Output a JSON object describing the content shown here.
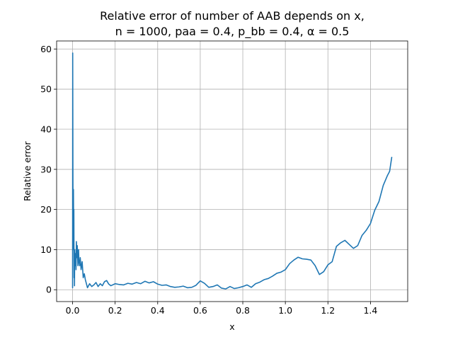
{
  "chart_data": {
    "type": "line",
    "title": "Relative error of number of AAB depends on x,",
    "subtitle": "n = 1000, paa = 0.4, p_bb = 0.4, α = 0.5",
    "xlabel": "x",
    "ylabel": "Relative error",
    "xlim": [
      -0.075,
      1.575
    ],
    "ylim": [
      -2.95,
      62.0
    ],
    "xticks": [
      0.0,
      0.2,
      0.4,
      0.6,
      0.8,
      1.0,
      1.2,
      1.4
    ],
    "xtick_labels": [
      "0.0",
      "0.2",
      "0.4",
      "0.6",
      "0.8",
      "1.0",
      "1.2",
      "1.4"
    ],
    "yticks": [
      0,
      10,
      20,
      30,
      40,
      50,
      60
    ],
    "ytick_labels": [
      "0",
      "10",
      "20",
      "30",
      "40",
      "50",
      "60"
    ],
    "grid": true,
    "series": [
      {
        "color": "#1f77b4",
        "x": [
          0.0,
          0.0005,
          0.001,
          0.0015,
          0.002,
          0.003,
          0.004,
          0.005,
          0.006,
          0.007,
          0.008,
          0.009,
          0.01,
          0.012,
          0.014,
          0.016,
          0.018,
          0.02,
          0.022,
          0.025,
          0.028,
          0.03,
          0.033,
          0.036,
          0.04,
          0.045,
          0.05,
          0.055,
          0.06,
          0.065,
          0.07,
          0.08,
          0.09,
          0.1,
          0.11,
          0.12,
          0.13,
          0.14,
          0.15,
          0.16,
          0.17,
          0.18,
          0.2,
          0.22,
          0.24,
          0.26,
          0.28,
          0.3,
          0.32,
          0.34,
          0.36,
          0.38,
          0.4,
          0.42,
          0.44,
          0.46,
          0.48,
          0.5,
          0.52,
          0.54,
          0.56,
          0.58,
          0.6,
          0.62,
          0.64,
          0.66,
          0.68,
          0.7,
          0.72,
          0.74,
          0.76,
          0.78,
          0.8,
          0.82,
          0.84,
          0.86,
          0.88,
          0.9,
          0.92,
          0.94,
          0.96,
          0.98,
          1.0,
          1.02,
          1.04,
          1.06,
          1.08,
          1.1,
          1.12,
          1.14,
          1.16,
          1.18,
          1.2,
          1.22,
          1.24,
          1.26,
          1.28,
          1.3,
          1.32,
          1.34,
          1.36,
          1.38,
          1.4,
          1.42,
          1.44,
          1.46,
          1.48,
          1.49,
          1.5
        ],
        "y": [
          0.5,
          59.0,
          45.0,
          30.0,
          20.0,
          10.0,
          25.0,
          14.0,
          20.0,
          3.0,
          8.0,
          1.0,
          10.0,
          6.0,
          9.0,
          5.0,
          12.0,
          8.0,
          11.0,
          6.0,
          10.0,
          7.0,
          6.0,
          8.0,
          5.0,
          7.0,
          3.0,
          4.0,
          2.5,
          1.5,
          0.5,
          1.5,
          0.8,
          1.2,
          1.8,
          0.8,
          1.5,
          1.0,
          2.0,
          2.3,
          1.4,
          1.0,
          1.5,
          1.3,
          1.2,
          1.6,
          1.4,
          1.8,
          1.5,
          2.1,
          1.7,
          2.0,
          1.4,
          1.1,
          1.2,
          0.8,
          0.6,
          0.7,
          0.9,
          0.5,
          0.6,
          1.1,
          2.2,
          1.6,
          0.6,
          0.8,
          1.2,
          0.4,
          0.2,
          0.8,
          0.3,
          0.5,
          0.8,
          1.2,
          0.6,
          1.5,
          1.9,
          2.5,
          2.8,
          3.4,
          4.1,
          4.4,
          5.0,
          6.5,
          7.4,
          8.1,
          7.7,
          7.6,
          7.4,
          6.0,
          3.8,
          4.5,
          6.2,
          7.0,
          10.8,
          11.7,
          12.3,
          11.3,
          10.3,
          11.0,
          13.5,
          14.8,
          16.5,
          19.8,
          22.0,
          26.0,
          28.5,
          29.5,
          33.0
        ]
      }
    ]
  }
}
